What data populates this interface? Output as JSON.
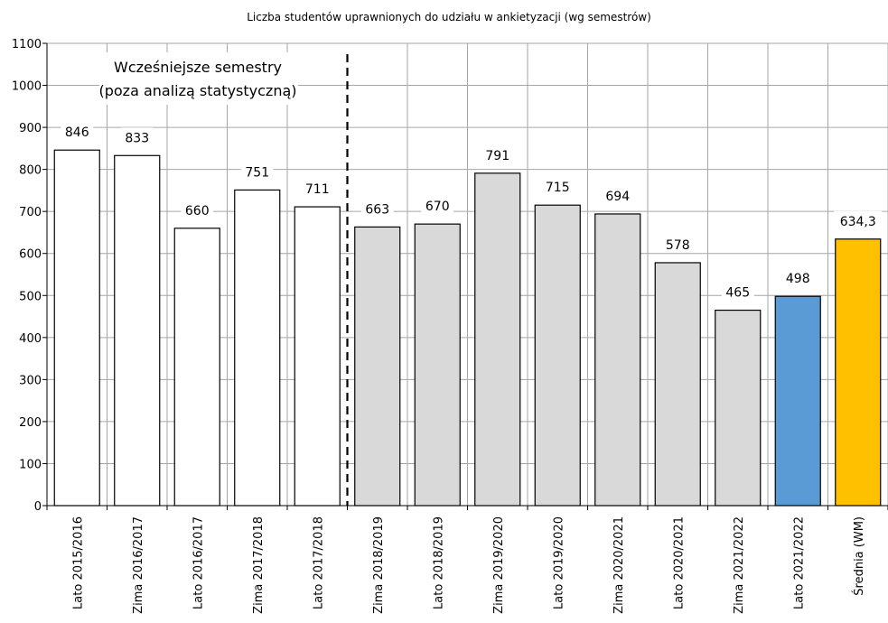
{
  "chart_data": {
    "type": "bar",
    "title": "Liczba studentów uprawnionych do udziału w ankietyzacji (wg semestrów)",
    "xlabel": "",
    "ylabel": "",
    "ylim": [
      0,
      1100
    ],
    "ytick_step": 100,
    "grid": true,
    "annotation": {
      "line1": "Wcześniejsze semestry",
      "line2": "(poza analizą statystyczną)"
    },
    "categories": [
      "Lato 2015/2016",
      "Zima 2016/2017",
      "Lato 2016/2017",
      "Zima 2017/2018",
      "Lato 2017/2018",
      "Zima 2018/2019",
      "Lato 2018/2019",
      "Zima 2019/2020",
      "Lato 2019/2020",
      "Zima 2020/2021",
      "Lato 2020/2021",
      "Zima 2021/2022",
      "Lato 2021/2022",
      "Średnia (WM)"
    ],
    "values": [
      846,
      833,
      660,
      751,
      711,
      663,
      670,
      791,
      715,
      694,
      578,
      465,
      498,
      634.3
    ],
    "value_labels": [
      "846",
      "833",
      "660",
      "751",
      "711",
      "663",
      "670",
      "791",
      "715",
      "694",
      "578",
      "465",
      "498",
      "634,3"
    ],
    "bar_colors": [
      "#ffffff",
      "#ffffff",
      "#ffffff",
      "#ffffff",
      "#ffffff",
      "#d9d9d9",
      "#d9d9d9",
      "#d9d9d9",
      "#d9d9d9",
      "#d9d9d9",
      "#d9d9d9",
      "#d9d9d9",
      "#5b9bd5",
      "#ffc000"
    ],
    "divider_after_index": 4
  }
}
